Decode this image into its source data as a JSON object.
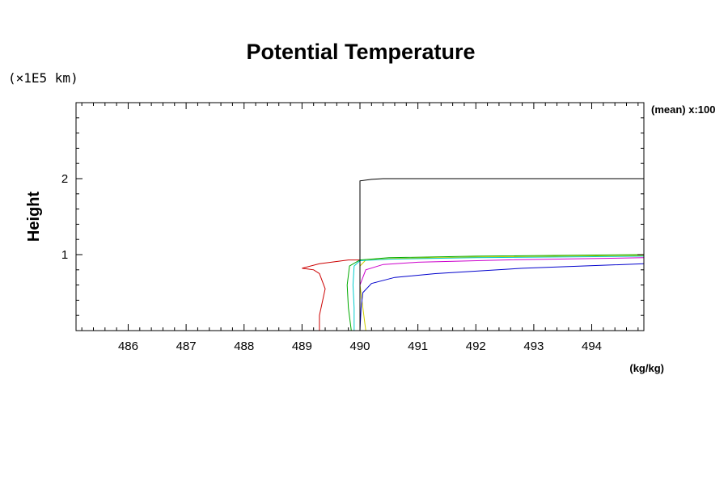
{
  "chart_data": {
    "type": "line",
    "title": "Potential Temperature",
    "ylabel": "Height",
    "yunit": "(×1E5 km)",
    "xunit": "(kg/kg)",
    "annotation": "(mean) x:100",
    "xlim": [
      485.1,
      494.9
    ],
    "ylim": [
      0,
      3
    ],
    "xticks": [
      "486",
      "487",
      "488",
      "489",
      "490",
      "491",
      "492",
      "493",
      "494"
    ],
    "yticks": [
      "1",
      "2"
    ],
    "xtick_values": [
      486,
      487,
      488,
      489,
      490,
      491,
      492,
      493,
      494
    ],
    "ytick_values": [
      1,
      2
    ],
    "grid": false,
    "main_profile": {
      "name": "",
      "color": "#000000",
      "x": [
        490.0,
        490.0,
        490.0,
        490.0,
        490.0,
        490.0,
        490.2,
        490.4,
        493.5,
        494.9
      ],
      "y": [
        0.0,
        0.5,
        1.0,
        1.5,
        1.9,
        1.97,
        1.99,
        2.0,
        2.0,
        2.0
      ]
    },
    "series": [
      {
        "name": "",
        "color": "#cc0000",
        "x": [
          489.3,
          489.3,
          489.4,
          489.3,
          489.2,
          489.0,
          489.3,
          489.8,
          490.0
        ],
        "y": [
          0.0,
          0.2,
          0.55,
          0.75,
          0.8,
          0.82,
          0.88,
          0.93,
          0.93
        ]
      },
      {
        "name": "",
        "color": "#00aa00",
        "x": [
          489.85,
          489.8,
          489.78,
          489.82,
          490.0,
          490.5,
          492.0,
          494.9
        ],
        "y": [
          0.0,
          0.3,
          0.6,
          0.85,
          0.93,
          0.96,
          0.98,
          1.0
        ]
      },
      {
        "name": "",
        "color": "#cccc00",
        "x": [
          490.1,
          490.05,
          490.0,
          490.0,
          490.1,
          490.6,
          492.2,
          494.9
        ],
        "y": [
          0.0,
          0.3,
          0.6,
          0.85,
          0.93,
          0.95,
          0.97,
          0.99
        ]
      },
      {
        "name": "",
        "color": "#00cccc",
        "x": [
          489.9,
          489.9,
          489.88,
          489.9,
          490.0,
          490.5,
          492.0,
          494.9
        ],
        "y": [
          0.0,
          0.3,
          0.6,
          0.85,
          0.92,
          0.94,
          0.96,
          0.98
        ]
      },
      {
        "name": "",
        "color": "#cc00cc",
        "x": [
          490.0,
          490.0,
          490.0,
          490.1,
          490.4,
          491.0,
          492.5,
          494.9
        ],
        "y": [
          0.0,
          0.3,
          0.6,
          0.8,
          0.87,
          0.9,
          0.93,
          0.96
        ]
      },
      {
        "name": "",
        "color": "#0000cc",
        "x": [
          490.0,
          490.02,
          490.05,
          490.2,
          490.6,
          491.3,
          492.8,
          494.9
        ],
        "y": [
          0.0,
          0.3,
          0.5,
          0.62,
          0.7,
          0.75,
          0.82,
          0.88
        ]
      }
    ]
  }
}
